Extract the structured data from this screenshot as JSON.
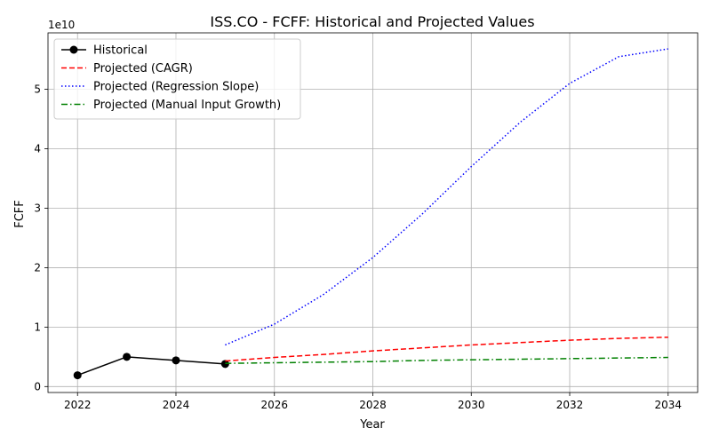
{
  "chart_data": {
    "type": "line",
    "title": "ISS.CO - FCFF: Historical and Projected Values",
    "xlabel": "Year",
    "ylabel": "FCFF",
    "y_offset_text": "1e10",
    "xlim": [
      2021.4,
      2034.6
    ],
    "ylim": [
      -0.1,
      5.95
    ],
    "y_scale_note": "values in units of 1e10",
    "x_ticks": [
      2022,
      2024,
      2026,
      2028,
      2030,
      2032,
      2034
    ],
    "y_ticks": [
      0,
      1,
      2,
      3,
      4,
      5
    ],
    "grid": true,
    "legend_position": "upper-left",
    "series": [
      {
        "name": "Historical",
        "style": "solid",
        "marker": "circle",
        "color": "#000000",
        "x": [
          2022,
          2023,
          2024,
          2025
        ],
        "values": [
          0.19,
          0.5,
          0.44,
          0.38
        ]
      },
      {
        "name": "Projected (CAGR)",
        "style": "dashed",
        "color": "#ff0000",
        "x": [
          2025,
          2026,
          2027,
          2028,
          2029,
          2030,
          2031,
          2032,
          2033,
          2034
        ],
        "values": [
          0.43,
          0.49,
          0.54,
          0.6,
          0.65,
          0.7,
          0.74,
          0.78,
          0.81,
          0.83
        ]
      },
      {
        "name": "Projected (Regression Slope)",
        "style": "dotted",
        "color": "#0000ff",
        "x": [
          2025,
          2026,
          2027,
          2028,
          2029,
          2030,
          2031,
          2032,
          2033,
          2034
        ],
        "values": [
          0.7,
          1.05,
          1.55,
          2.17,
          2.9,
          3.7,
          4.45,
          5.1,
          5.55,
          5.68
        ]
      },
      {
        "name": "Projected (Manual Input Growth)",
        "style": "dashdot",
        "color": "#008000",
        "x": [
          2025,
          2026,
          2027,
          2028,
          2029,
          2030,
          2031,
          2032,
          2033,
          2034
        ],
        "values": [
          0.39,
          0.4,
          0.41,
          0.42,
          0.44,
          0.45,
          0.46,
          0.47,
          0.48,
          0.49
        ]
      }
    ]
  }
}
